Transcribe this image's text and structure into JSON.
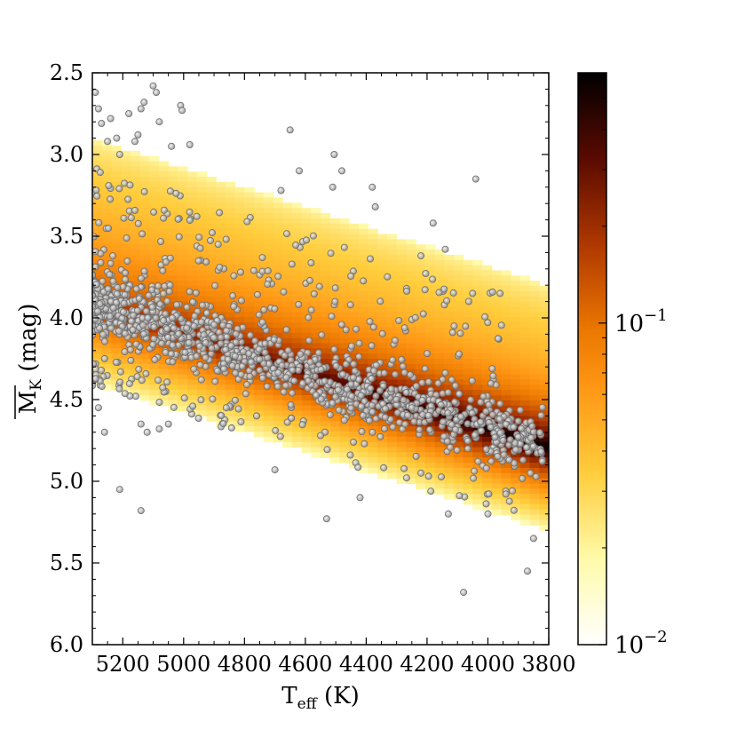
{
  "chart_data": {
    "type": "heatmap",
    "overlay": "scatter",
    "x_axis": {
      "label": "T",
      "label_sub": "eff",
      "label_unit": " (K)",
      "range": [
        5300,
        3800
      ],
      "reversed": true,
      "ticks": [
        5200,
        5000,
        4800,
        4600,
        4400,
        4200,
        4000,
        3800
      ],
      "tick_labels": [
        "5200",
        "5000",
        "4800",
        "4600",
        "4400",
        "4200",
        "4000",
        "3800"
      ]
    },
    "y_axis": {
      "label": "M",
      "label_sub": "K",
      "label_overline": true,
      "label_unit": " (mag)",
      "range": [
        2.5,
        6.0
      ],
      "reversed": true,
      "ticks": [
        2.5,
        3.0,
        3.5,
        4.0,
        4.5,
        5.0,
        5.5,
        6.0
      ],
      "tick_labels": [
        "2.5",
        "3.0",
        "3.5",
        "4.0",
        "4.5",
        "5.0",
        "5.5",
        "6.0"
      ]
    },
    "colorbar": {
      "scale": "log",
      "colormap": "afmhot_r",
      "range": [
        0.01,
        0.6
      ],
      "ticks": [
        0.1,
        0.01
      ],
      "tick_labels": [
        {
          "base": "10",
          "exp": "−1"
        },
        {
          "base": "10",
          "exp": "−2"
        }
      ]
    },
    "density_model": {
      "ridge_at_5300K": 3.92,
      "ridge_at_3800K": 4.8,
      "upper_edge_at_5300K": 2.9,
      "upper_edge_at_3800K": 3.8,
      "lower_edge_at_5300K": 4.4,
      "lower_edge_at_3800K": 5.3
    },
    "scatter_points": [
      [
        5290,
        2.62
      ],
      [
        5280,
        2.72
      ],
      [
        5270,
        2.81
      ],
      [
        5250,
        2.92
      ],
      [
        5240,
        2.78
      ],
      [
        5220,
        2.9
      ],
      [
        5210,
        3.0
      ],
      [
        5180,
        2.75
      ],
      [
        5140,
        2.72
      ],
      [
        5130,
        2.68
      ],
      [
        5100,
        2.58
      ],
      [
        5090,
        2.62
      ],
      [
        5010,
        2.7
      ],
      [
        5005,
        2.73
      ],
      [
        5080,
        2.8
      ],
      [
        5040,
        2.95
      ],
      [
        4980,
        2.94
      ],
      [
        5150,
        2.88
      ],
      [
        5160,
        2.92
      ],
      [
        4650,
        2.85
      ],
      [
        4505,
        3.0
      ],
      [
        4480,
        3.1
      ],
      [
        4380,
        3.2
      ],
      [
        4040,
        3.15
      ],
      [
        4180,
        3.42
      ],
      [
        4220,
        3.62
      ],
      [
        4140,
        3.58
      ],
      [
        4370,
        3.32
      ],
      [
        4510,
        3.2
      ],
      [
        4620,
        3.1
      ],
      [
        4680,
        3.22
      ],
      [
        5280,
        4.55
      ],
      [
        5260,
        4.7
      ],
      [
        5140,
        4.65
      ],
      [
        5120,
        4.7
      ],
      [
        5210,
        5.05
      ],
      [
        5140,
        5.18
      ],
      [
        4700,
        4.93
      ],
      [
        4530,
        5.23
      ],
      [
        4420,
        5.1
      ],
      [
        4080,
        5.68
      ],
      [
        3870,
        5.55
      ],
      [
        3850,
        5.35
      ],
      [
        3930,
        4.87
      ],
      [
        3950,
        4.75
      ],
      [
        3860,
        4.95
      ],
      [
        4000,
        5.2
      ],
      [
        4130,
        5.2
      ],
      [
        5050,
        4.65
      ],
      [
        5080,
        4.68
      ],
      [
        4970,
        4.54
      ],
      [
        4860,
        4.55
      ],
      [
        4760,
        4.6
      ],
      [
        4050,
        3.85
      ],
      [
        3960,
        3.85
      ]
    ]
  }
}
